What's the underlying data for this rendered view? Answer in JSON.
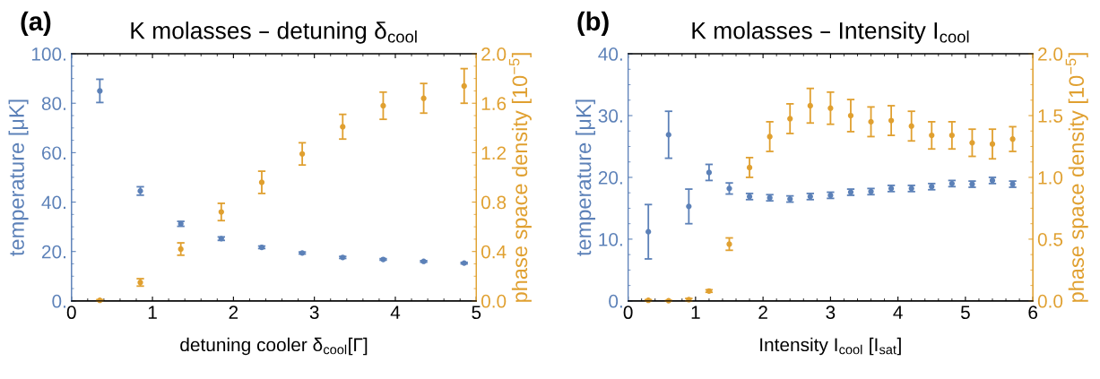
{
  "chart_data": [
    {
      "type": "scatter",
      "title": "K molasses – detuning δ$_{cool}$",
      "xlabel": "detuning cooler δ$_{cool}$[Γ]",
      "ylabel": "temperature [μK]",
      "y2label": "phase space density [10$^{−5}$]",
      "annotations": [
        "(a)"
      ],
      "xlim": [
        0,
        5
      ],
      "xticks": [
        0,
        1,
        2,
        3,
        4,
        5
      ],
      "ylim": [
        0,
        100
      ],
      "yticks": [
        {
          "value": 0,
          "label": "0."
        },
        {
          "value": 20,
          "label": "20."
        },
        {
          "value": 40,
          "label": "40."
        },
        {
          "value": 60,
          "label": "60."
        },
        {
          "value": 80,
          "label": "80."
        },
        {
          "value": 100,
          "label": "100."
        }
      ],
      "y2lim": [
        0,
        2
      ],
      "y2ticks": [
        {
          "value": 0,
          "label": "0.0"
        },
        {
          "value": 0.4,
          "label": "0.4"
        },
        {
          "value": 0.8,
          "label": "0.8"
        },
        {
          "value": 1.2,
          "label": "1.2"
        },
        {
          "value": 1.6,
          "label": "1.6"
        },
        {
          "value": 2.0,
          "label": "2.0"
        }
      ],
      "marker": "circle",
      "grid": false,
      "legend": false,
      "x": [
        0.35,
        0.85,
        1.35,
        1.85,
        2.35,
        2.85,
        3.35,
        3.85,
        4.35,
        4.85
      ],
      "series": [
        {
          "color": "#5c81b8",
          "values": [
            85,
            44.5,
            31.2,
            25.2,
            21.7,
            19.4,
            17.6,
            16.8,
            16.0,
            15.3
          ],
          "errors": [
            4.7,
            1.7,
            1.0,
            0.7,
            0.5,
            0.4,
            0.4,
            0.3,
            0.3,
            0.3
          ]
        },
        {
          "color": "#e0a030",
          "axis": "y2",
          "values": [
            0.005,
            0.15,
            0.42,
            0.72,
            0.96,
            1.19,
            1.41,
            1.58,
            1.64,
            1.74
          ],
          "errors": [
            0.005,
            0.03,
            0.05,
            0.07,
            0.09,
            0.09,
            0.1,
            0.11,
            0.12,
            0.14
          ]
        }
      ]
    },
    {
      "type": "scatter",
      "title": "K molasses – Intensity I$_{cool}$",
      "xlabel": "Intensity I$_{cool}$ [I$_{sat}$]",
      "ylabel": "temperature [μK]",
      "y2label": "phase space density [10$^{−5}$]",
      "annotations": [
        "(b)"
      ],
      "xlim": [
        0,
        6
      ],
      "xticks": [
        0,
        1,
        2,
        3,
        4,
        5,
        6
      ],
      "ylim": [
        0,
        40
      ],
      "yticks": [
        {
          "value": 0,
          "label": "0."
        },
        {
          "value": 10,
          "label": "10."
        },
        {
          "value": 20,
          "label": "20."
        },
        {
          "value": 30,
          "label": "30."
        },
        {
          "value": 40,
          "label": "40."
        }
      ],
      "y2lim": [
        0,
        2
      ],
      "y2ticks": [
        {
          "value": 0,
          "label": "0.0"
        },
        {
          "value": 0.5,
          "label": "0.5"
        },
        {
          "value": 1.0,
          "label": "1.0"
        },
        {
          "value": 1.5,
          "label": "1.5"
        },
        {
          "value": 2.0,
          "label": "2.0"
        }
      ],
      "marker": "circle",
      "grid": false,
      "legend": false,
      "x": [
        0.3,
        0.6,
        0.9,
        1.2,
        1.5,
        1.8,
        2.1,
        2.4,
        2.7,
        3.0,
        3.3,
        3.6,
        3.9,
        4.2,
        4.5,
        4.8,
        5.1,
        5.4,
        5.7
      ],
      "series": [
        {
          "color": "#5c81b8",
          "values": [
            11.2,
            26.9,
            15.3,
            20.8,
            18.2,
            16.9,
            16.7,
            16.5,
            16.9,
            17.1,
            17.6,
            17.7,
            18.2,
            18.2,
            18.5,
            19.0,
            18.9,
            19.5,
            18.9
          ],
          "errors": [
            4.4,
            3.8,
            2.8,
            1.3,
            0.9,
            0.5,
            0.5,
            0.5,
            0.5,
            0.5,
            0.5,
            0.5,
            0.5,
            0.5,
            0.5,
            0.5,
            0.5,
            0.5,
            0.5
          ]
        },
        {
          "color": "#e0a030",
          "axis": "y2",
          "values": [
            0.005,
            0.002,
            0.01,
            0.08,
            0.46,
            1.08,
            1.33,
            1.475,
            1.58,
            1.56,
            1.5,
            1.45,
            1.46,
            1.415,
            1.34,
            1.34,
            1.28,
            1.27,
            1.31
          ],
          "errors": [
            0.005,
            0.002,
            0.01,
            0.01,
            0.05,
            0.08,
            0.12,
            0.12,
            0.14,
            0.13,
            0.13,
            0.12,
            0.12,
            0.12,
            0.11,
            0.11,
            0.11,
            0.12,
            0.1
          ]
        }
      ]
    }
  ]
}
